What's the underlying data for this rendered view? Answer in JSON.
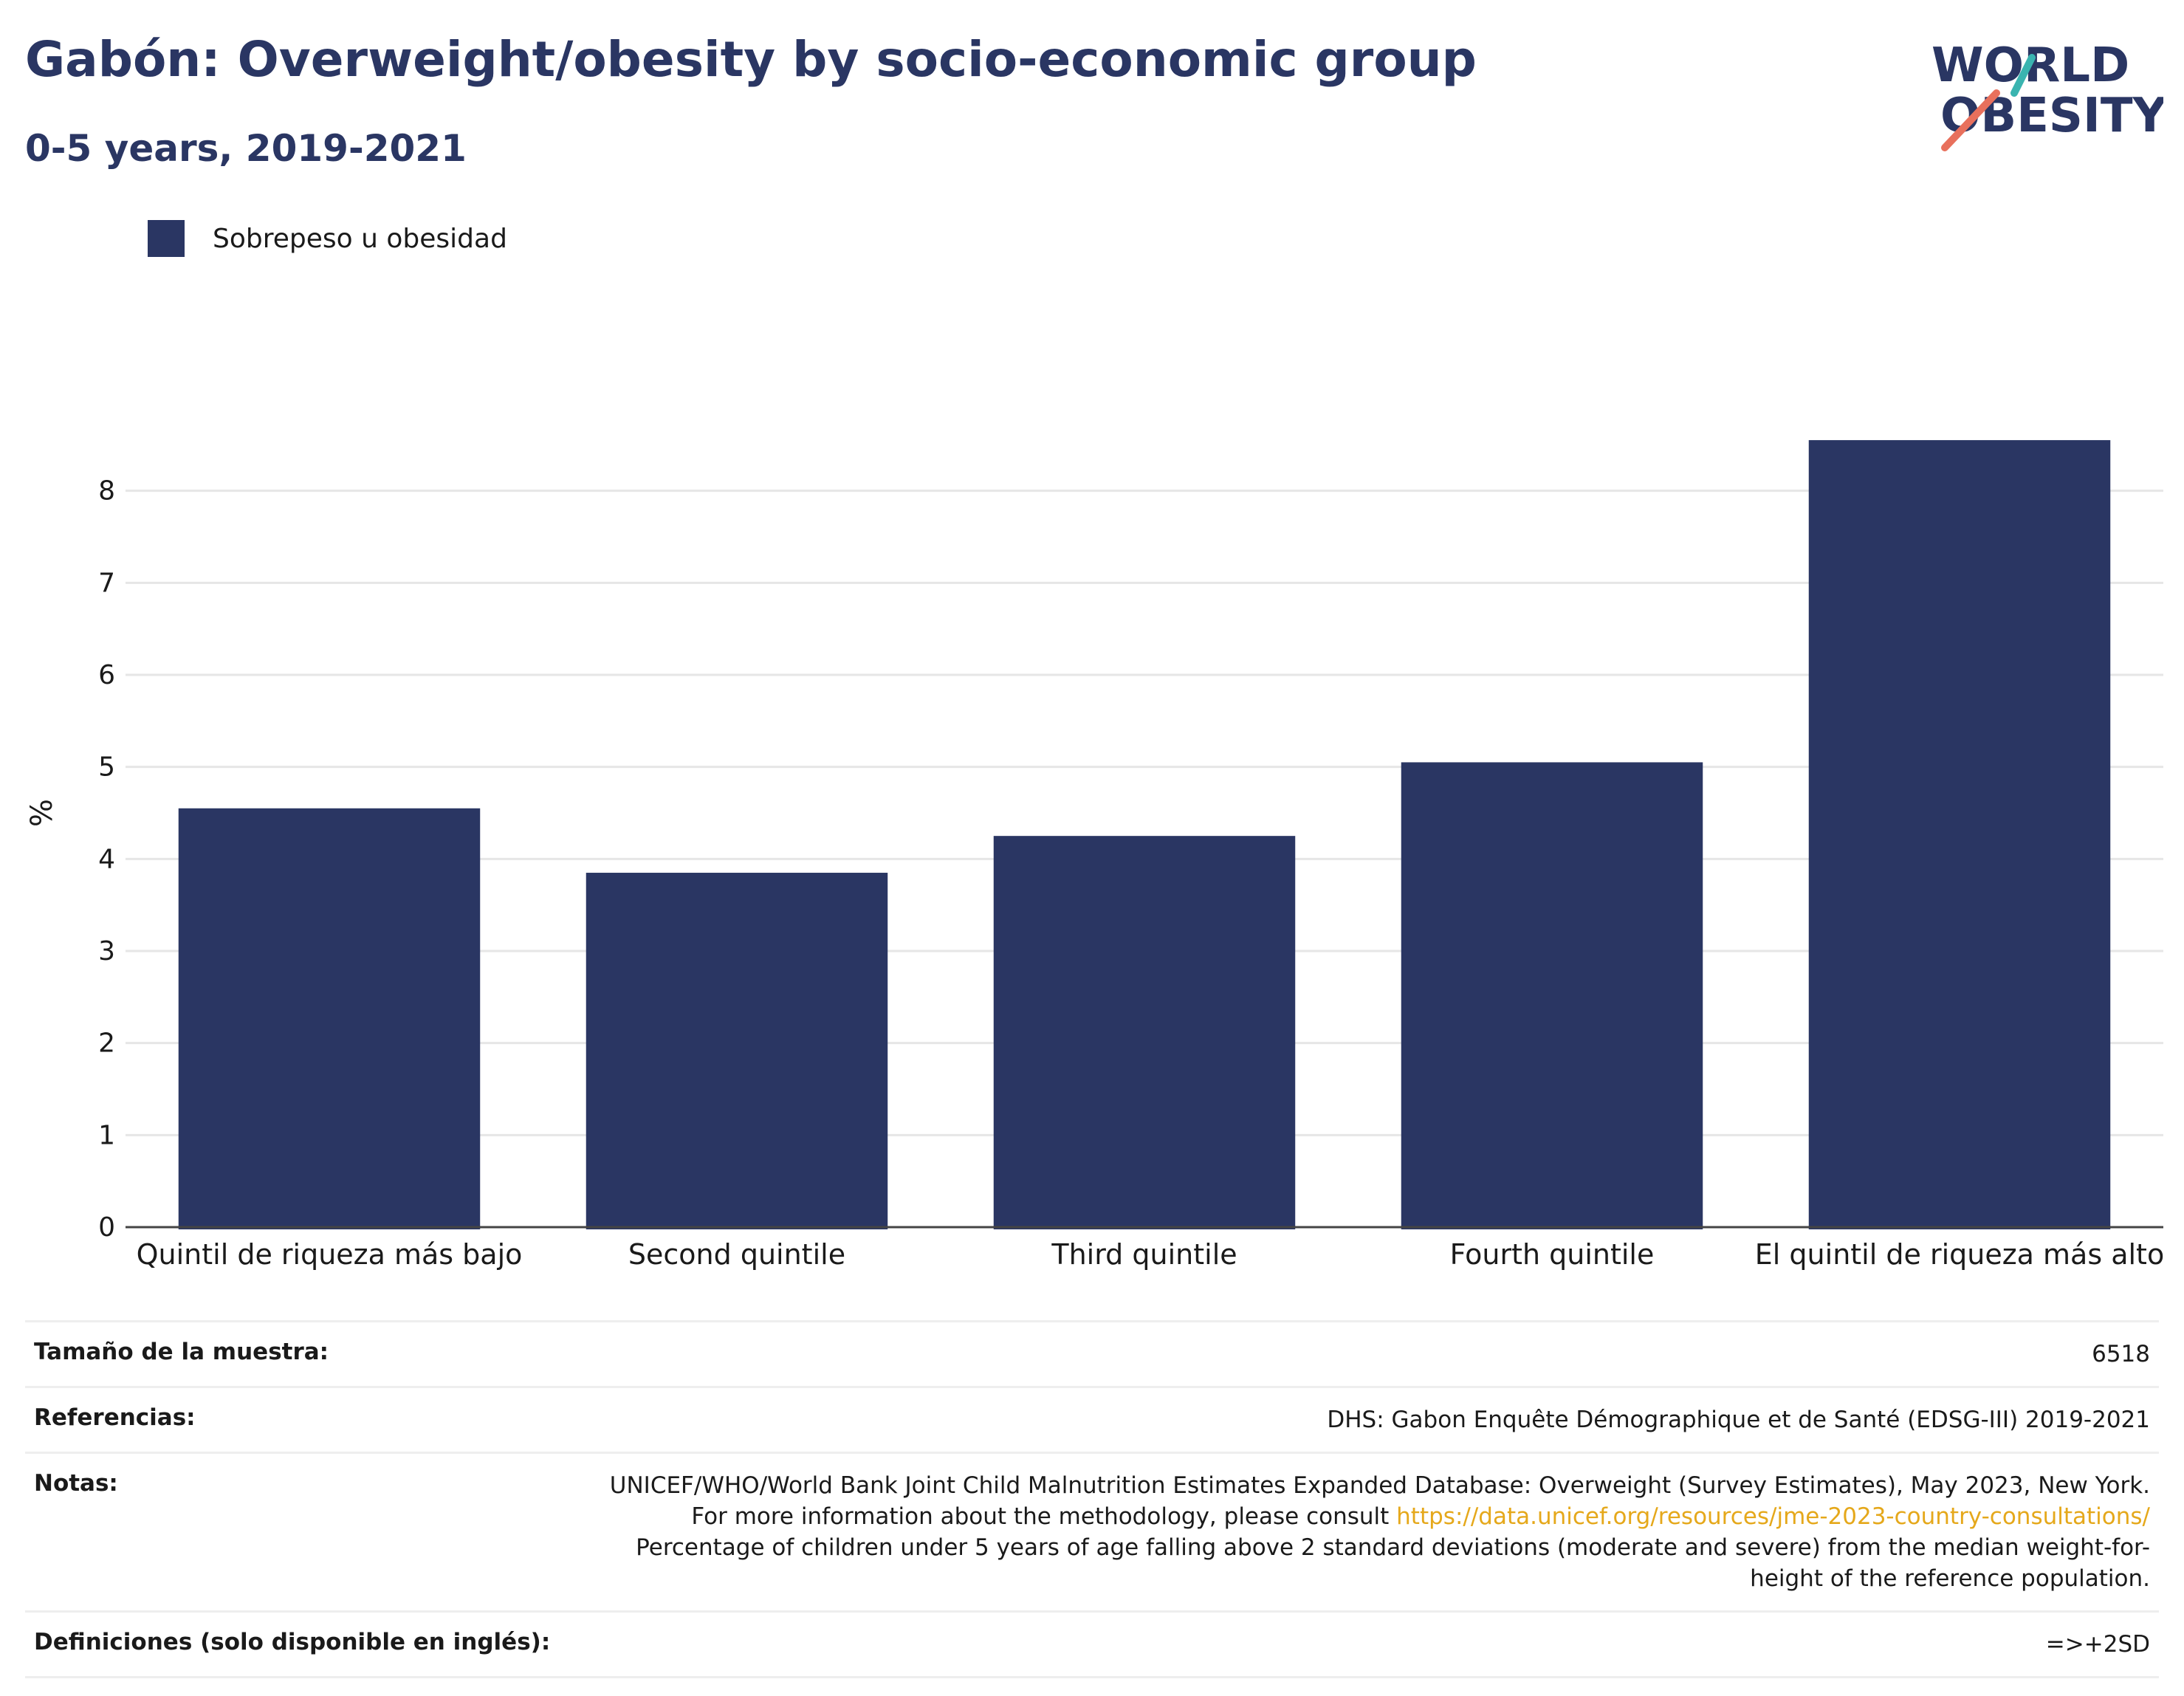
{
  "title": "Gabón: Overweight/obesity by socio-economic group",
  "subtitle": "0-5 years, 2019-2021",
  "logo": {
    "line1": "WORLD",
    "line2": "OBESITY"
  },
  "colors": {
    "bar": "#2a3663",
    "title": "#2a3663",
    "link": "#e5a81b",
    "logo_teal": "#3ab4b0",
    "logo_coral": "#e8705c"
  },
  "chart_data": {
    "type": "bar",
    "categories": [
      "Quintil de riqueza más bajo",
      "Second quintile",
      "Third quintile",
      "Fourth quintile",
      "El quintil de riqueza más alto"
    ],
    "series": [
      {
        "name": "Sobrepeso u obesidad",
        "values": [
          4.55,
          3.85,
          4.25,
          5.05,
          8.55
        ]
      }
    ],
    "ylabel": "%",
    "ylim": [
      0,
      9
    ],
    "yticks": [
      0,
      1,
      2,
      3,
      4,
      5,
      6,
      7,
      8
    ],
    "grid": true,
    "legend": "top-left"
  },
  "notes": {
    "sample_label": "Tamaño de la muestra:",
    "sample_value": "6518",
    "refs_label": "Referencias:",
    "refs_value": "DHS: Gabon Enquête Démographique et de Santé (EDSG-III) 2019-2021",
    "notes_label": "Notas:",
    "notes_text1": "UNICEF/WHO/World Bank Joint Child Malnutrition Estimates Expanded Database: Overweight (Survey Estimates), May 2023, New York. For more information about the methodology, please consult ",
    "notes_link": "https://data.unicef.org/resources/jme-2023-country-consultations/",
    "notes_text2": "Percentage of children under 5 years of age falling above 2 standard deviations (moderate and severe) from the median weight-for-height of the reference population.",
    "defs_label": "Definiciones (solo disponible en inglés):",
    "defs_value": "=>+2SD"
  }
}
